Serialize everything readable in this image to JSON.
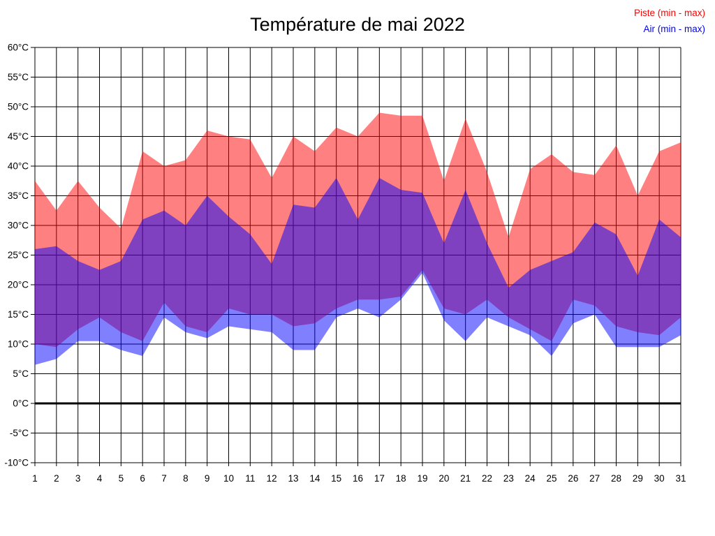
{
  "title": "Température de mai 2022",
  "legend": [
    {
      "label": "Piste (min - max)",
      "color": "#ff0101"
    },
    {
      "label": "Air (min - max)",
      "color": "#0101ff"
    }
  ],
  "axes": {
    "y_unit": "°C",
    "y_min": -10,
    "y_max": 60,
    "y_step": 5,
    "x_min_label": "1",
    "x_max_label": "31"
  },
  "chart_data": {
    "type": "area",
    "title": "Température de mai 2022",
    "x": [
      1,
      2,
      3,
      4,
      5,
      6,
      7,
      8,
      9,
      10,
      11,
      12,
      13,
      14,
      15,
      16,
      17,
      18,
      19,
      20,
      21,
      22,
      23,
      24,
      25,
      26,
      27,
      28,
      29,
      30,
      31
    ],
    "series": [
      {
        "name": "Piste (min - max)",
        "color": "#ff0101",
        "max": [
          37.5,
          32.5,
          37.5,
          33,
          29.5,
          42.5,
          40,
          41,
          46,
          45,
          44.5,
          38,
          45,
          42.5,
          46.5,
          45,
          49,
          48.5,
          48.5,
          37.5,
          48,
          39,
          28,
          39.5,
          42,
          39,
          38.5,
          43.5,
          35,
          42.5,
          44
        ],
        "min": [
          10,
          9.5,
          12.5,
          14.5,
          12,
          10.5,
          17,
          13,
          12,
          16,
          15,
          15,
          13,
          13.5,
          16,
          17.5,
          17.5,
          18,
          22.5,
          16,
          15,
          17.5,
          14.5,
          12.5,
          10.5,
          17.5,
          16.5,
          13,
          12,
          11.5,
          14.5
        ]
      },
      {
        "name": "Air (min - max)",
        "color": "#0101ff",
        "max": [
          26,
          26.5,
          24,
          22.5,
          24,
          31,
          32.5,
          30,
          35,
          31.5,
          28.5,
          23.5,
          33.5,
          33,
          38,
          31,
          38,
          36,
          35.5,
          27,
          36,
          27,
          19.5,
          22.5,
          24,
          25.5,
          30.5,
          28.5,
          21.5,
          31,
          28
        ],
        "min": [
          6.5,
          7.5,
          10.5,
          10.5,
          9,
          8,
          14.5,
          12,
          11,
          13,
          12.5,
          12,
          9,
          9,
          14.5,
          16,
          14.5,
          17.5,
          22,
          14,
          10.5,
          14.5,
          13,
          11.5,
          8,
          13.5,
          15,
          9.5,
          9.5,
          9.5,
          11.5
        ]
      }
    ],
    "ylim": [
      -10,
      60
    ],
    "grid": true,
    "zero_line_bold": true,
    "legend_position": "top-right",
    "band_opacity": 0.5
  }
}
